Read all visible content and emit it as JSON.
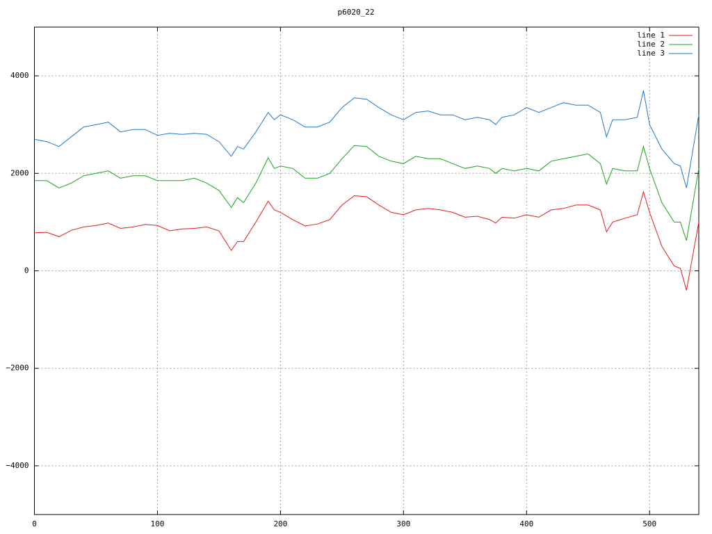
{
  "chart_data": {
    "type": "line",
    "title": "p6020_22",
    "x": [
      0,
      10,
      20,
      30,
      40,
      50,
      60,
      70,
      80,
      90,
      100,
      110,
      120,
      130,
      140,
      150,
      160,
      165,
      170,
      180,
      190,
      195,
      200,
      210,
      220,
      230,
      240,
      250,
      260,
      270,
      280,
      290,
      300,
      310,
      320,
      330,
      340,
      350,
      360,
      370,
      375,
      380,
      390,
      400,
      410,
      420,
      430,
      440,
      450,
      460,
      465,
      470,
      480,
      490,
      495,
      500,
      510,
      520,
      525,
      530,
      540
    ],
    "series": [
      {
        "name": "line 1",
        "color": "#e41a1c",
        "values": [
          780,
          790,
          700,
          830,
          900,
          930,
          980,
          870,
          900,
          950,
          930,
          820,
          860,
          870,
          900,
          820,
          420,
          600,
          600,
          1000,
          1430,
          1250,
          1200,
          1050,
          920,
          960,
          1050,
          1350,
          1540,
          1520,
          1350,
          1200,
          1150,
          1250,
          1280,
          1250,
          1200,
          1100,
          1120,
          1050,
          980,
          1100,
          1080,
          1150,
          1100,
          1250,
          1280,
          1350,
          1350,
          1250,
          800,
          1000,
          1080,
          1150,
          1620,
          1200,
          500,
          100,
          50,
          -400,
          1000
        ]
      },
      {
        "name": "line 2",
        "color": "#1aa31a",
        "values": [
          1850,
          1850,
          1700,
          1800,
          1950,
          2000,
          2050,
          1900,
          1950,
          1950,
          1850,
          1850,
          1850,
          1900,
          1800,
          1650,
          1300,
          1500,
          1400,
          1800,
          2320,
          2100,
          2150,
          2100,
          1900,
          1900,
          2000,
          2300,
          2570,
          2550,
          2350,
          2250,
          2200,
          2350,
          2300,
          2300,
          2200,
          2100,
          2150,
          2100,
          2000,
          2100,
          2050,
          2100,
          2050,
          2250,
          2300,
          2350,
          2400,
          2200,
          1780,
          2100,
          2050,
          2050,
          2550,
          2100,
          1400,
          1000,
          1000,
          620,
          2100
        ]
      },
      {
        "name": "line 3",
        "color": "#1f78c8",
        "values": [
          2700,
          2650,
          2550,
          2750,
          2950,
          3000,
          3050,
          2850,
          2900,
          2900,
          2780,
          2820,
          2800,
          2820,
          2800,
          2650,
          2350,
          2550,
          2500,
          2850,
          3250,
          3100,
          3200,
          3100,
          2950,
          2950,
          3050,
          3350,
          3550,
          3520,
          3350,
          3200,
          3100,
          3250,
          3280,
          3200,
          3200,
          3100,
          3150,
          3100,
          3000,
          3150,
          3200,
          3350,
          3250,
          3350,
          3450,
          3400,
          3400,
          3250,
          2750,
          3100,
          3100,
          3150,
          3700,
          3000,
          2500,
          2200,
          2150,
          1700,
          3200
        ]
      }
    ],
    "xlim": [
      0,
      540
    ],
    "xticks": [
      0,
      100,
      200,
      300,
      400,
      500
    ],
    "ylim": [
      -5000,
      5000
    ],
    "yticks": [
      {
        "value": -4000,
        "label": "−4000"
      },
      {
        "value": -2000,
        "label": "−2000"
      },
      0,
      2000,
      4000
    ],
    "grid": true,
    "legend": "top-right"
  }
}
